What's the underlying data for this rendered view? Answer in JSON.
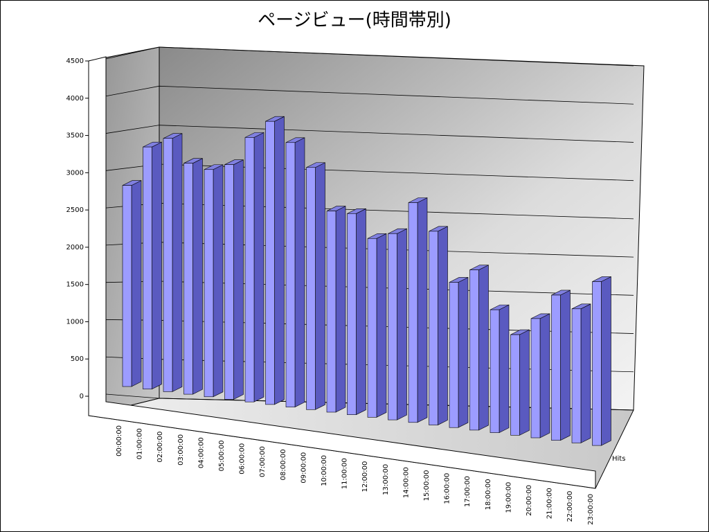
{
  "chart_data": {
    "type": "bar3d",
    "title": "ページビュー(時間帯別)",
    "categories": [
      "00:00:00",
      "01:00:00",
      "02:00:00",
      "03:00:00",
      "04:00:00",
      "05:00:00",
      "06:00:00",
      "07:00:00",
      "08:00:00",
      "09:00:00",
      "10:00:00",
      "11:00:00",
      "12:00:00",
      "13:00:00",
      "14:00:00",
      "15:00:00",
      "16:00:00",
      "17:00:00",
      "18:00:00",
      "19:00:00",
      "20:00:00",
      "21:00:00",
      "22:00:00",
      "23:00:00"
    ],
    "series": [
      {
        "name": "Hits",
        "color": "#9c9cff",
        "values": [
          2700,
          3250,
          3400,
          3100,
          3050,
          3150,
          3550,
          3800,
          3550,
          3250,
          2700,
          2700,
          2400,
          2500,
          2950,
          2600,
          1950,
          2150,
          1650,
          1350,
          1600,
          1950,
          1800,
          2200
        ]
      }
    ],
    "ylim": [
      0,
      4500
    ],
    "yticks": [
      0,
      500,
      1000,
      1500,
      2000,
      2500,
      3000,
      3500,
      4000,
      4500
    ],
    "grid": true
  }
}
